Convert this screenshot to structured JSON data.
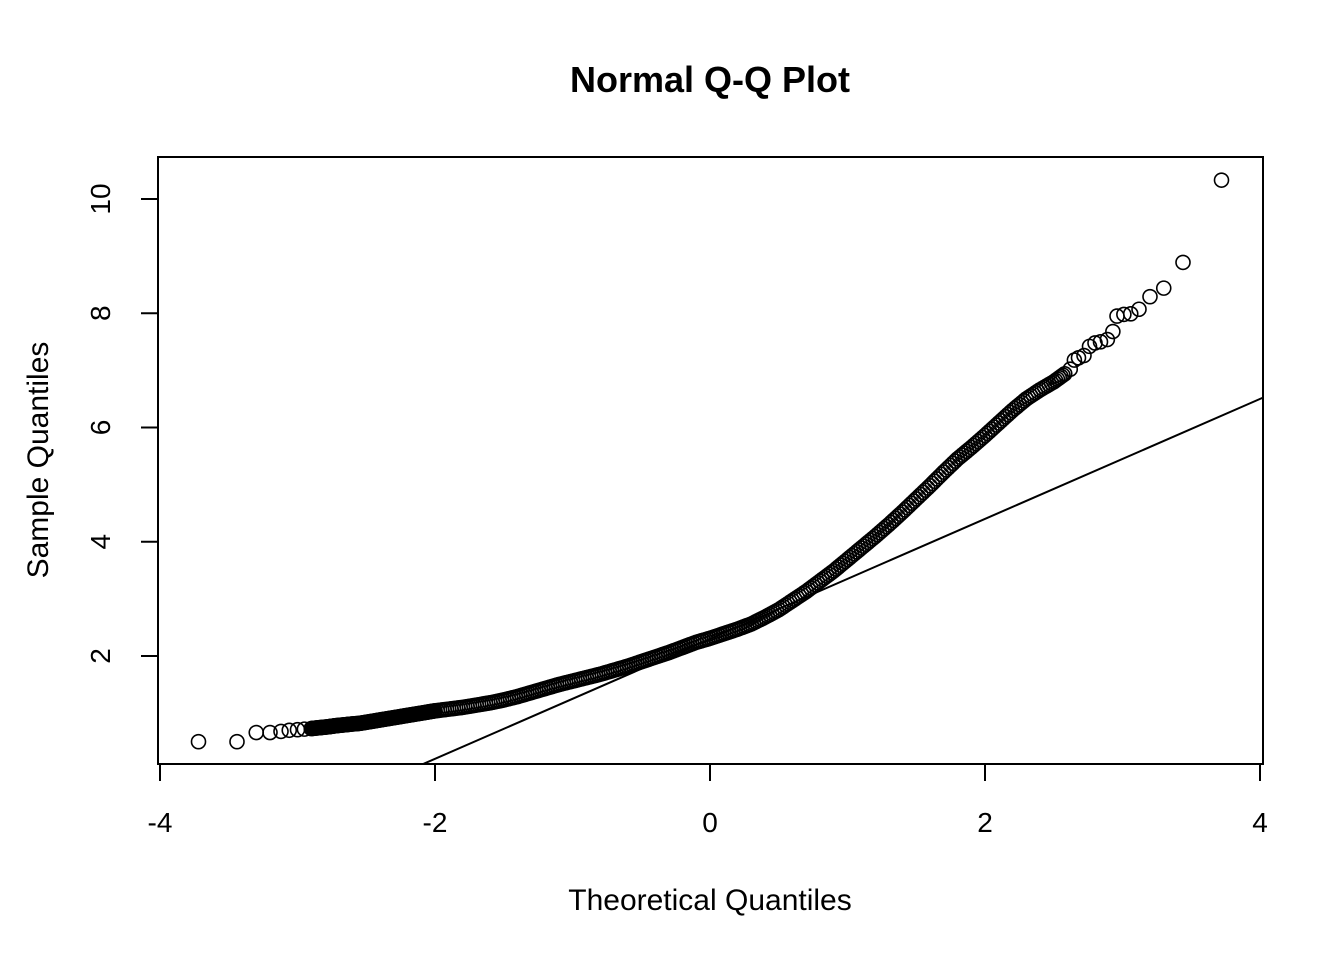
{
  "chart_data": {
    "type": "scatter",
    "title": "Normal Q-Q Plot",
    "xlabel": "Theoretical Quantiles",
    "ylabel": "Sample Quantiles",
    "xlim": [
      -4,
      4
    ],
    "ylim": [
      0.1,
      10.7
    ],
    "x_ticks": [
      -4,
      -2,
      0,
      2,
      4
    ],
    "x_tick_labels": [
      "-4",
      "-2",
      "0",
      "2",
      "4"
    ],
    "y_ticks": [
      2,
      4,
      6,
      8,
      10
    ],
    "y_tick_labels": [
      "2",
      "4",
      "6",
      "8",
      "10"
    ],
    "grid": false,
    "marker": "open-circle",
    "colors": {
      "points": "#000000",
      "line": "#000000",
      "frame": "#000000"
    },
    "reference_line": {
      "intercept": 2.3,
      "slope": 1.05
    },
    "points": [
      [
        -3.72,
        0.5
      ],
      [
        -3.44,
        0.5
      ],
      [
        -3.3,
        0.66
      ],
      [
        -3.2,
        0.66
      ],
      [
        -3.12,
        0.68
      ],
      [
        -3.06,
        0.7
      ],
      [
        -3.0,
        0.71
      ],
      [
        -2.95,
        0.72
      ],
      [
        -2.9,
        0.73
      ],
      [
        -2.86,
        0.74
      ],
      [
        -2.82,
        0.75
      ],
      [
        -2.78,
        0.76
      ],
      [
        -2.75,
        0.77
      ],
      [
        -2.72,
        0.78
      ],
      [
        -2.68,
        0.79
      ],
      [
        -2.64,
        0.8
      ],
      [
        -2.6,
        0.81
      ],
      [
        -2.55,
        0.82
      ],
      [
        -2.5,
        0.84
      ],
      [
        -2.45,
        0.86
      ],
      [
        -2.4,
        0.88
      ],
      [
        -2.35,
        0.9
      ],
      [
        -2.3,
        0.92
      ],
      [
        -2.25,
        0.94
      ],
      [
        -2.2,
        0.96
      ],
      [
        -2.15,
        0.98
      ],
      [
        -2.1,
        1.0
      ],
      [
        -2.05,
        1.02
      ],
      [
        -2.0,
        1.04
      ],
      [
        -1.9,
        1.07
      ],
      [
        -1.8,
        1.1
      ],
      [
        -1.7,
        1.14
      ],
      [
        -1.6,
        1.18
      ],
      [
        -1.5,
        1.23
      ],
      [
        -1.4,
        1.29
      ],
      [
        -1.3,
        1.36
      ],
      [
        -1.2,
        1.43
      ],
      [
        -1.1,
        1.5
      ],
      [
        -1.0,
        1.56
      ],
      [
        -0.9,
        1.62
      ],
      [
        -0.8,
        1.68
      ],
      [
        -0.7,
        1.75
      ],
      [
        -0.6,
        1.82
      ],
      [
        -0.5,
        1.9
      ],
      [
        -0.4,
        1.98
      ],
      [
        -0.3,
        2.06
      ],
      [
        -0.2,
        2.15
      ],
      [
        -0.1,
        2.24
      ],
      [
        0.0,
        2.31
      ],
      [
        0.1,
        2.39
      ],
      [
        0.2,
        2.47
      ],
      [
        0.3,
        2.56
      ],
      [
        0.4,
        2.68
      ],
      [
        0.5,
        2.81
      ],
      [
        0.6,
        2.97
      ],
      [
        0.7,
        3.13
      ],
      [
        0.8,
        3.31
      ],
      [
        0.9,
        3.49
      ],
      [
        1.0,
        3.69
      ],
      [
        1.1,
        3.89
      ],
      [
        1.2,
        4.09
      ],
      [
        1.3,
        4.3
      ],
      [
        1.4,
        4.52
      ],
      [
        1.5,
        4.75
      ],
      [
        1.6,
        4.98
      ],
      [
        1.7,
        5.22
      ],
      [
        1.8,
        5.45
      ],
      [
        1.9,
        5.65
      ],
      [
        2.0,
        5.86
      ],
      [
        2.1,
        6.08
      ],
      [
        2.2,
        6.3
      ],
      [
        2.3,
        6.5
      ],
      [
        2.4,
        6.66
      ],
      [
        2.5,
        6.8
      ],
      [
        2.58,
        6.94
      ],
      [
        2.62,
        7.02
      ],
      [
        2.65,
        7.18
      ],
      [
        2.68,
        7.22
      ],
      [
        2.72,
        7.26
      ],
      [
        2.76,
        7.42
      ],
      [
        2.8,
        7.48
      ],
      [
        2.84,
        7.5
      ],
      [
        2.89,
        7.54
      ],
      [
        2.93,
        7.68
      ],
      [
        2.96,
        7.95
      ],
      [
        3.01,
        7.98
      ],
      [
        3.06,
        7.99
      ],
      [
        3.12,
        8.07
      ],
      [
        3.2,
        8.29
      ],
      [
        3.3,
        8.44
      ],
      [
        3.44,
        8.89
      ],
      [
        3.72,
        10.33
      ]
    ]
  }
}
